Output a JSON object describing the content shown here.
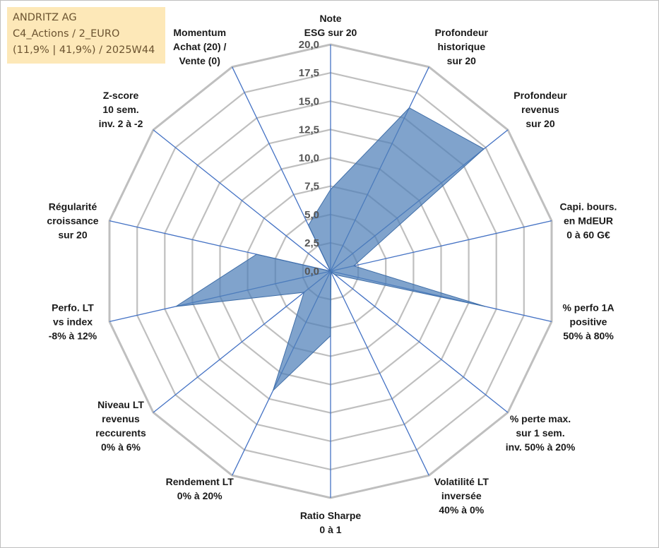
{
  "info_box": {
    "line1": "ANDRITZ AG",
    "line2": "C4_Actions / 2_EURO",
    "line3": "(11,9% | 41,9%) / 2025W44"
  },
  "colors": {
    "grid": "#bfbfbf",
    "spoke": "#4472c4",
    "fill": "#4f7fb9",
    "fill_stroke": "#3f6ea8"
  },
  "chart_data": {
    "type": "radar",
    "title": "",
    "range": [
      0,
      20
    ],
    "tick_step": 2.5,
    "tick_labels": [
      "0,0",
      "2,5",
      "5,0",
      "7,5",
      "10,0",
      "12,5",
      "15,0",
      "17,5",
      "20,0"
    ],
    "axes": [
      {
        "lines": [
          "Note",
          "ESG sur 20"
        ]
      },
      {
        "lines": [
          "Profondeur",
          "historique",
          "sur 20"
        ]
      },
      {
        "lines": [
          "Profondeur",
          "revenus",
          "sur 20"
        ]
      },
      {
        "lines": [
          "Capi. bours.",
          "en MdEUR",
          "0 à 60 G€"
        ]
      },
      {
        "lines": [
          "% perfo 1A",
          "positive",
          "50% à 80%"
        ]
      },
      {
        "lines": [
          "% perte max.",
          "sur 1 sem.",
          "inv. 50% à 20%"
        ]
      },
      {
        "lines": [
          "Volatilité LT",
          "inversée",
          "40% à 0%"
        ]
      },
      {
        "lines": [
          "Ratio Sharpe",
          "0 à 1"
        ]
      },
      {
        "lines": [
          "Rendement LT",
          "0% à 20%"
        ]
      },
      {
        "lines": [
          "Niveau LT",
          "revenus",
          "reccurents",
          "0% à 6%"
        ]
      },
      {
        "lines": [
          "Perfo. LT",
          "vs index",
          "-8% à 12%"
        ]
      },
      {
        "lines": [
          "Régularité",
          "croissance",
          "sur 20"
        ]
      },
      {
        "lines": [
          "Z-score",
          "10 sem.",
          "inv. 2 à -2"
        ]
      },
      {
        "lines": [
          "Momentum",
          "Achat (20) /",
          "Vente (0)"
        ]
      }
    ],
    "series": [
      {
        "name": "ANDRITZ AG",
        "values": [
          7.2,
          16.0,
          17.3,
          2.1,
          14.0,
          0.5,
          0.1,
          5.7,
          11.7,
          3.0,
          14.0,
          6.7,
          0.0,
          4.5
        ]
      }
    ]
  }
}
